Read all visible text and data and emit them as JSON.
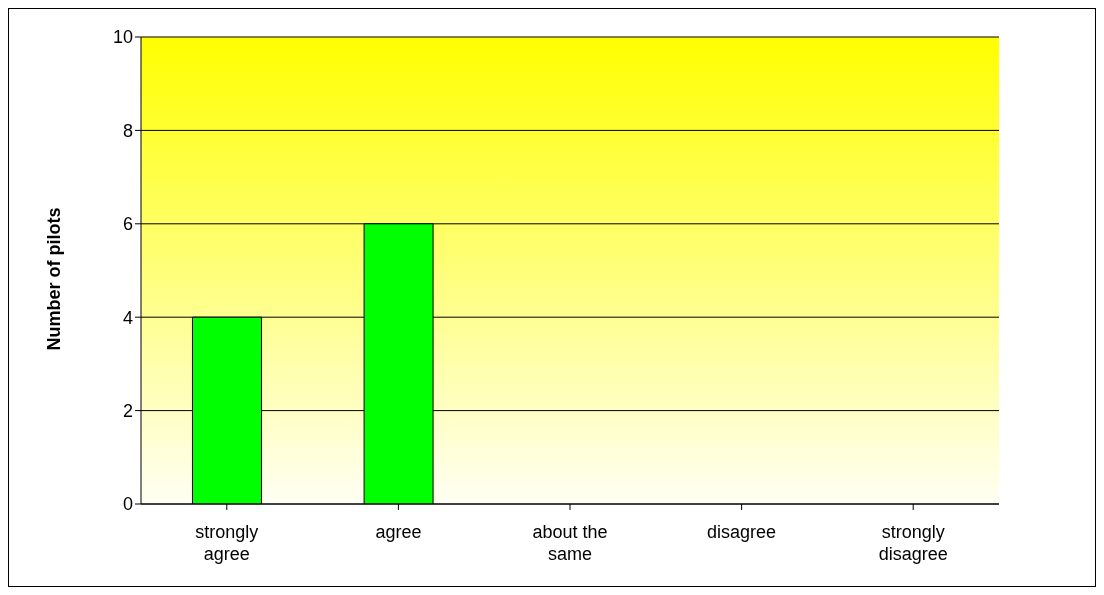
{
  "chart_data": {
    "type": "bar",
    "ylabel": "Number of pilots",
    "categories": [
      "strongly agree",
      "agree",
      "about the same",
      "disagree",
      "strongly disagree"
    ],
    "values": [
      4,
      6,
      0,
      0,
      0
    ],
    "color": "#00ff00",
    "ylim": [
      0,
      10
    ],
    "yticks": [
      0,
      2,
      4,
      6,
      8,
      10
    ],
    "grid": "y"
  }
}
